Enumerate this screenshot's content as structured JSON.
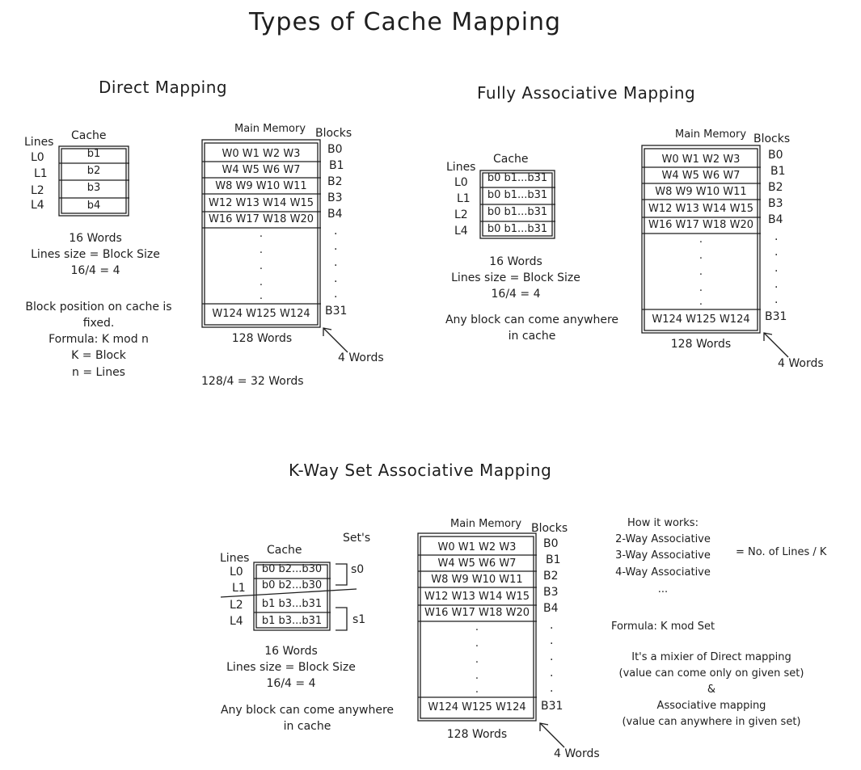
{
  "title": "Types of Cache Mapping",
  "direct": {
    "heading": "Direct Mapping",
    "lines_label": "Lines",
    "cache_label": "Cache",
    "lines": [
      "L0",
      "L1",
      "L2",
      "L4"
    ],
    "cache_cells": [
      "b1",
      "b2",
      "b3",
      "b4"
    ],
    "mm_label": "Main Memory",
    "blocks_label": "Blocks",
    "mem_rows": [
      "W0 W1 W2 W3",
      "W4 W5 W6 W7",
      "W8 W9 W10 W11",
      "W12 W13 W14 W15",
      "W16 W17 W18 W20"
    ],
    "blocks": [
      "B0",
      "B1",
      "B2",
      "B3",
      "B4"
    ],
    "dots": ".",
    "last_row": "W124 W125 W124",
    "last_block": "B31",
    "mem_words": "128 Words",
    "four_words": "4 Words",
    "calc": "128/4 = 32 Words",
    "notes": [
      "16 Words",
      "Lines size = Block Size",
      "16/4 = 4",
      "Block position on cache is",
      "fixed.",
      "Formula: K mod n",
      "K = Block",
      "n = Lines"
    ]
  },
  "fully": {
    "heading": "Fully Associative Mapping",
    "lines_label": "Lines",
    "cache_label": "Cache",
    "lines": [
      "L0",
      "L1",
      "L2",
      "L4"
    ],
    "cache_cells": [
      "b0 b1...b31",
      "b0 b1...b31",
      "b0 b1...b31",
      "b0 b1...b31"
    ],
    "mm_label": "Main Memory",
    "blocks_label": "Blocks",
    "mem_rows": [
      "W0 W1 W2 W3",
      "W4 W5 W6 W7",
      "W8 W9 W10 W11",
      "W12 W13 W14 W15",
      "W16 W17 W18 W20"
    ],
    "blocks": [
      "B0",
      "B1",
      "B2",
      "B3",
      "B4"
    ],
    "dots": ".",
    "last_row": "W124 W125 W124",
    "last_block": "B31",
    "mem_words": "128 Words",
    "four_words": "4 Words",
    "notes": [
      "16 Words",
      "Lines size = Block Size",
      "16/4 = 4",
      "Any block can come anywhere",
      "in cache"
    ]
  },
  "kway": {
    "heading": "K-Way Set Associative Mapping",
    "sets_label": "Set's",
    "lines_label": "Lines",
    "cache_label": "Cache",
    "lines": [
      "L0",
      "L1",
      "L2",
      "L4"
    ],
    "cache_cells": [
      "b0 b2...b30",
      "b0 b2...b30",
      "b1 b3...b31",
      "b1 b3...b31"
    ],
    "sets": [
      "s0",
      "s1"
    ],
    "mm_label": "Main Memory",
    "blocks_label": "Blocks",
    "mem_rows": [
      "W0 W1 W2 W3",
      "W4 W5 W6 W7",
      "W8 W9 W10 W11",
      "W12 W13 W14 W15",
      "W16 W17 W18 W20"
    ],
    "blocks": [
      "B0",
      "B1",
      "B2",
      "B3",
      "B4"
    ],
    "dots": ".",
    "last_row": "W124 W125 W124",
    "last_block": "B31",
    "mem_words": "128 Words",
    "four_words": "4 Words",
    "notes": [
      "16 Words",
      "Lines size = Block Size",
      "16/4 = 4",
      "Any block can come anywhere",
      "in cache"
    ],
    "how_title": "How it works:",
    "how_items": [
      "2-Way Associative",
      "3-Way Associative",
      "4-Way Associative",
      "..."
    ],
    "how_eq": "= No. of Lines / K",
    "formula": "Formula: K mod Set",
    "mix": [
      "It's a mixier of Direct mapping",
      "(value can come only on given set)",
      "&",
      "Associative mapping",
      "(value can anywhere in given set)"
    ]
  }
}
